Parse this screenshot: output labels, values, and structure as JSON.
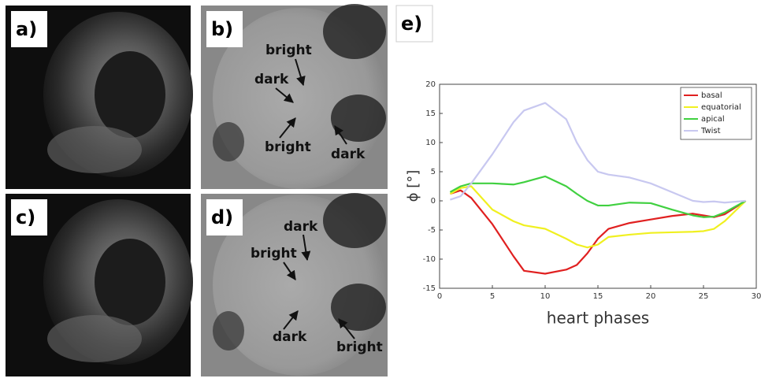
{
  "panels": [
    {
      "label": "a)"
    },
    {
      "label": "b)",
      "annotations": [
        "bright",
        "dark",
        "bright",
        "dark"
      ]
    },
    {
      "label": "c)"
    },
    {
      "label": "d)",
      "annotations": [
        "dark",
        "bright",
        "dark",
        "bright"
      ]
    }
  ],
  "chart_data": {
    "type": "line",
    "label": "e)",
    "xlabel": "heart phases",
    "ylabel": "ϕ [°]",
    "x": [
      1,
      2,
      3,
      5,
      7,
      8,
      10,
      12,
      13,
      14,
      15,
      16,
      18,
      20,
      22,
      24,
      25,
      26,
      27,
      29
    ],
    "series": [
      {
        "name": "basal",
        "color": "#e02020",
        "values": [
          1.2,
          1.8,
          0.5,
          -4,
          -9.5,
          -12,
          -12.5,
          -11.8,
          -11,
          -9,
          -6.5,
          -4.8,
          -3.8,
          -3.2,
          -2.6,
          -2.2,
          -2.5,
          -2.8,
          -2.3,
          0
        ]
      },
      {
        "name": "equatorial",
        "color": "#f0f020",
        "values": [
          1.2,
          2.2,
          2.5,
          -1.5,
          -3.5,
          -4.2,
          -4.8,
          -6.5,
          -7.5,
          -8,
          -7.5,
          -6.2,
          -5.8,
          -5.5,
          -5.4,
          -5.3,
          -5.2,
          -4.8,
          -3.5,
          0
        ]
      },
      {
        "name": "apical",
        "color": "#40d040",
        "values": [
          1.5,
          2.5,
          3.0,
          3.0,
          2.8,
          3.2,
          4.2,
          2.5,
          1.2,
          0,
          -0.8,
          -0.8,
          -0.3,
          -0.4,
          -1.5,
          -2.5,
          -2.8,
          -2.7,
          -2.0,
          0
        ]
      },
      {
        "name": "Twist",
        "color": "#c8c8f0",
        "values": [
          0.2,
          0.8,
          3,
          8,
          13.5,
          15.5,
          16.8,
          14,
          10,
          7,
          5,
          4.5,
          4,
          3,
          1.5,
          0,
          -0.2,
          -0.1,
          -0.3,
          0
        ]
      }
    ],
    "xlim": [
      0,
      30
    ],
    "xticks": [
      0,
      5,
      10,
      15,
      20,
      25,
      30
    ],
    "ylim": [
      -15,
      20
    ],
    "yticks": [
      -15,
      -10,
      -5,
      0,
      5,
      10,
      15,
      20
    ],
    "legend": "upper right"
  }
}
